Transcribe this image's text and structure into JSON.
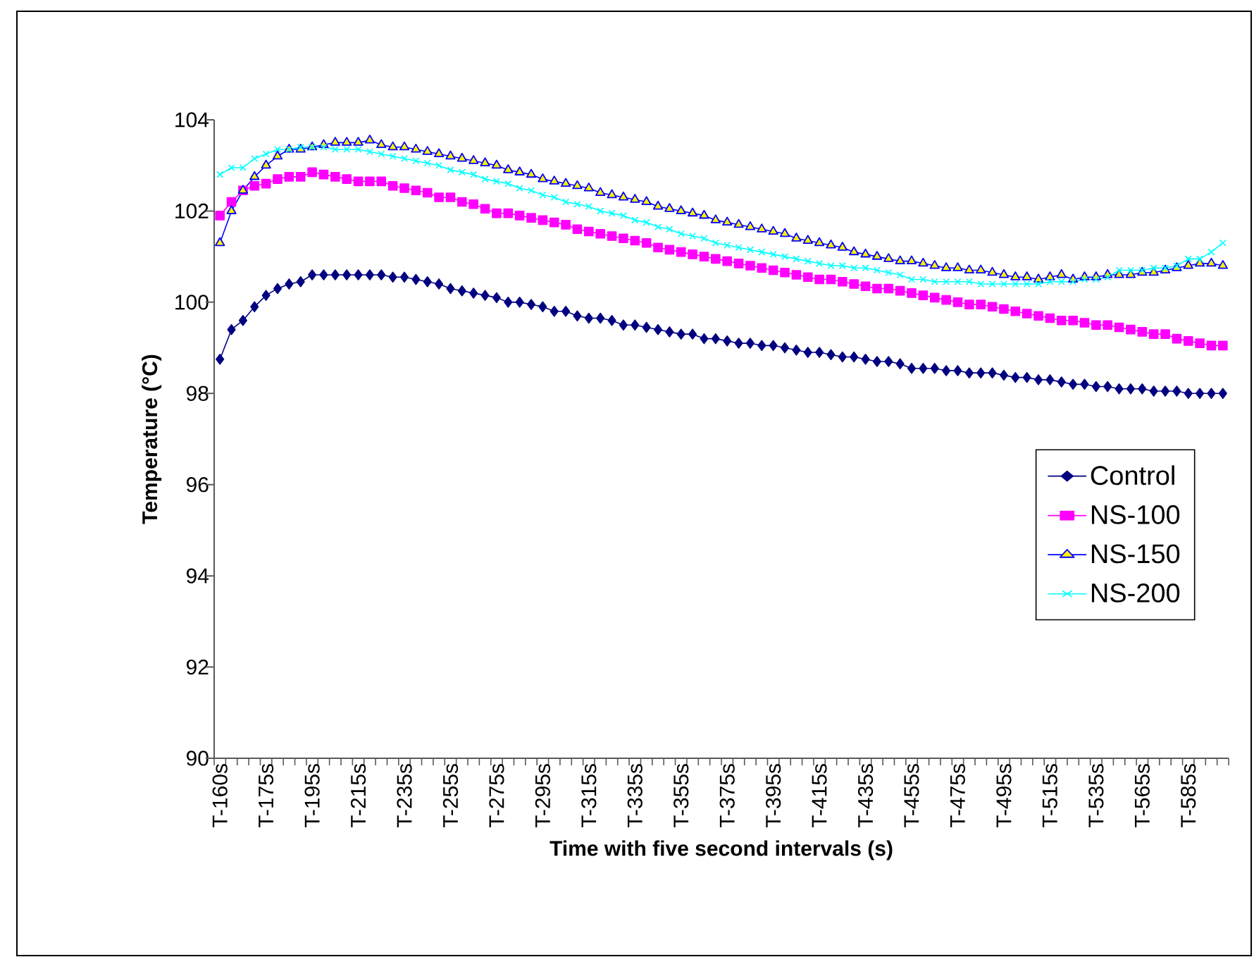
{
  "chart_data": {
    "type": "line",
    "xlabel": "Time with five second intervals (s)",
    "ylabel": "Temperature (°C)",
    "categories": [
      "T-160s",
      null,
      null,
      null,
      "T-175s",
      null,
      null,
      null,
      "T-195s",
      null,
      null,
      null,
      "T-215s",
      null,
      null,
      null,
      "T-235s",
      null,
      null,
      null,
      "T-255s",
      null,
      null,
      null,
      "T-275s",
      null,
      null,
      null,
      "T-295s",
      null,
      null,
      null,
      "T-315s",
      null,
      null,
      null,
      "T-335s",
      null,
      null,
      null,
      "T-355s",
      null,
      null,
      null,
      "T-375s",
      null,
      null,
      null,
      "T-395s",
      null,
      null,
      null,
      "T-415s",
      null,
      null,
      null,
      "T-435s",
      null,
      null,
      null,
      "T-455s",
      null,
      null,
      null,
      "T-475s",
      null,
      null,
      null,
      "T-495s",
      null,
      null,
      null,
      "T-515s",
      null,
      null,
      null,
      "T-535s",
      null,
      null,
      null,
      "T-565s",
      null,
      null,
      null,
      "T-585s",
      null,
      null,
      null
    ],
    "ylim": [
      90,
      104
    ],
    "yticks": [
      90,
      92,
      94,
      96,
      98,
      100,
      102,
      104
    ],
    "grid": false,
    "legend": "right",
    "series": [
      {
        "name": "Control",
        "color": "#000080",
        "marker": "diamond",
        "values": [
          98.75,
          99.4,
          99.6,
          99.9,
          100.15,
          100.3,
          100.4,
          100.45,
          100.6,
          100.6,
          100.6,
          100.6,
          100.6,
          100.6,
          100.6,
          100.55,
          100.55,
          100.5,
          100.45,
          100.4,
          100.3,
          100.25,
          100.2,
          100.15,
          100.1,
          100.0,
          100.0,
          99.95,
          99.9,
          99.8,
          99.8,
          99.7,
          99.65,
          99.65,
          99.6,
          99.5,
          99.5,
          99.45,
          99.4,
          99.35,
          99.3,
          99.3,
          99.2,
          99.2,
          99.15,
          99.1,
          99.1,
          99.05,
          99.05,
          99.0,
          98.95,
          98.9,
          98.9,
          98.85,
          98.8,
          98.8,
          98.75,
          98.7,
          98.7,
          98.65,
          98.55,
          98.55,
          98.55,
          98.5,
          98.5,
          98.45,
          98.45,
          98.45,
          98.4,
          98.35,
          98.35,
          98.3,
          98.3,
          98.25,
          98.2,
          98.2,
          98.15,
          98.15,
          98.1,
          98.1,
          98.1,
          98.05,
          98.05,
          98.05,
          98.0,
          98.0,
          98.0,
          98.0
        ]
      },
      {
        "name": "NS-100",
        "color": "#ff00ff",
        "marker": "square",
        "values": [
          101.9,
          102.2,
          102.45,
          102.55,
          102.6,
          102.7,
          102.75,
          102.75,
          102.85,
          102.8,
          102.75,
          102.7,
          102.65,
          102.65,
          102.65,
          102.55,
          102.5,
          102.45,
          102.4,
          102.3,
          102.3,
          102.2,
          102.15,
          102.05,
          101.95,
          101.95,
          101.9,
          101.85,
          101.8,
          101.75,
          101.7,
          101.6,
          101.55,
          101.5,
          101.45,
          101.4,
          101.35,
          101.3,
          101.2,
          101.15,
          101.1,
          101.05,
          101.0,
          100.95,
          100.9,
          100.85,
          100.8,
          100.75,
          100.7,
          100.65,
          100.6,
          100.55,
          100.5,
          100.5,
          100.45,
          100.4,
          100.35,
          100.3,
          100.3,
          100.25,
          100.2,
          100.15,
          100.1,
          100.05,
          100.0,
          99.95,
          99.95,
          99.9,
          99.85,
          99.8,
          99.75,
          99.7,
          99.65,
          99.6,
          99.6,
          99.55,
          99.5,
          99.5,
          99.45,
          99.4,
          99.35,
          99.3,
          99.3,
          99.2,
          99.15,
          99.1,
          99.05,
          99.05
        ]
      },
      {
        "name": "NS-150",
        "color": "#0000ff",
        "marker": "triangle",
        "values": [
          101.3,
          102.0,
          102.45,
          102.75,
          103.0,
          103.2,
          103.35,
          103.35,
          103.4,
          103.45,
          103.5,
          103.5,
          103.5,
          103.55,
          103.45,
          103.4,
          103.4,
          103.35,
          103.3,
          103.25,
          103.2,
          103.15,
          103.1,
          103.05,
          103.0,
          102.9,
          102.85,
          102.8,
          102.7,
          102.65,
          102.6,
          102.55,
          102.5,
          102.4,
          102.35,
          102.3,
          102.25,
          102.2,
          102.1,
          102.05,
          102.0,
          101.95,
          101.9,
          101.8,
          101.75,
          101.7,
          101.65,
          101.6,
          101.55,
          101.5,
          101.4,
          101.35,
          101.3,
          101.25,
          101.2,
          101.1,
          101.05,
          101.0,
          100.95,
          100.9,
          100.9,
          100.85,
          100.8,
          100.75,
          100.75,
          100.7,
          100.7,
          100.65,
          100.6,
          100.55,
          100.55,
          100.5,
          100.55,
          100.6,
          100.5,
          100.55,
          100.55,
          100.6,
          100.6,
          100.6,
          100.65,
          100.65,
          100.7,
          100.75,
          100.8,
          100.85,
          100.85,
          100.8
        ]
      },
      {
        "name": "NS-200",
        "color": "#00ffff",
        "marker": "cross",
        "values": [
          102.8,
          102.95,
          102.95,
          103.15,
          103.25,
          103.35,
          103.35,
          103.4,
          103.4,
          103.4,
          103.35,
          103.35,
          103.35,
          103.3,
          103.25,
          103.2,
          103.15,
          103.1,
          103.05,
          103.0,
          102.9,
          102.85,
          102.8,
          102.7,
          102.65,
          102.6,
          102.5,
          102.45,
          102.35,
          102.3,
          102.2,
          102.15,
          102.1,
          102.0,
          101.95,
          101.9,
          101.8,
          101.75,
          101.65,
          101.6,
          101.5,
          101.45,
          101.4,
          101.3,
          101.25,
          101.2,
          101.15,
          101.1,
          101.05,
          101.0,
          100.95,
          100.9,
          100.85,
          100.8,
          100.8,
          100.75,
          100.75,
          100.7,
          100.65,
          100.6,
          100.5,
          100.5,
          100.45,
          100.45,
          100.45,
          100.45,
          100.4,
          100.4,
          100.4,
          100.4,
          100.4,
          100.4,
          100.45,
          100.45,
          100.45,
          100.5,
          100.5,
          100.55,
          100.7,
          100.7,
          100.7,
          100.75,
          100.75,
          100.8,
          100.95,
          100.95,
          101.1,
          101.3
        ]
      }
    ]
  }
}
